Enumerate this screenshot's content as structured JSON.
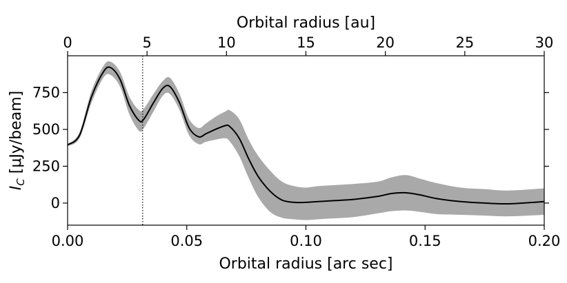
{
  "chart_data": {
    "type": "line",
    "xlabel": "Orbital radius [arc sec]",
    "ylabel": "I_C [μJy/beam]",
    "ylabel_parts": {
      "main": "I",
      "sub": "C",
      "rest": " [μJy/beam]"
    },
    "top_xlabel": "Orbital radius [au]",
    "xlim": [
      0.0,
      0.2
    ],
    "ylim": [
      -150,
      1000
    ],
    "x_ticks": [
      "0.00",
      "0.05",
      "0.10",
      "0.15",
      "0.20"
    ],
    "x_tick_values": [
      0.0,
      0.05,
      0.1,
      0.15,
      0.2
    ],
    "y_ticks": [
      "0",
      "250",
      "500",
      "750"
    ],
    "y_tick_values": [
      0,
      250,
      500,
      750
    ],
    "top_ticks": [
      "0",
      "5",
      "10",
      "15",
      "20",
      "25",
      "30"
    ],
    "top_tick_values": [
      0,
      5,
      10,
      15,
      20,
      25,
      30
    ],
    "top_xlim": [
      0,
      30
    ],
    "vline_x": 0.0315,
    "grid": false,
    "colors": {
      "line": "#000000",
      "band": "#a9a9a9"
    },
    "series": [
      {
        "x": [
          0.0,
          0.005,
          0.01,
          0.015,
          0.018,
          0.022,
          0.026,
          0.03,
          0.032,
          0.036,
          0.04,
          0.043,
          0.047,
          0.051,
          0.055,
          0.058,
          0.062,
          0.066,
          0.068,
          0.072,
          0.076,
          0.08,
          0.085,
          0.09,
          0.095,
          0.1,
          0.105,
          0.11,
          0.12,
          0.13,
          0.136,
          0.142,
          0.148,
          0.155,
          0.165,
          0.175,
          0.185,
          0.2
        ],
        "y": [
          395,
          460,
          720,
          890,
          920,
          840,
          660,
          560,
          570,
          680,
          780,
          790,
          680,
          510,
          450,
          470,
          500,
          525,
          520,
          440,
          300,
          180,
          80,
          20,
          5,
          5,
          10,
          15,
          25,
          45,
          65,
          70,
          55,
          30,
          10,
          0,
          -5,
          10
        ],
        "low": [
          385,
          440,
          680,
          850,
          870,
          790,
          600,
          490,
          510,
          620,
          730,
          740,
          630,
          460,
          400,
          415,
          430,
          440,
          420,
          320,
          170,
          40,
          -60,
          -100,
          -110,
          -115,
          -110,
          -105,
          -95,
          -70,
          -55,
          -50,
          -60,
          -75,
          -80,
          -85,
          -90,
          -80
        ],
        "high": [
          400,
          480,
          760,
          930,
          960,
          890,
          720,
          630,
          640,
          740,
          830,
          850,
          740,
          570,
          510,
          540,
          585,
          620,
          630,
          570,
          430,
          320,
          220,
          145,
          115,
          105,
          115,
          120,
          130,
          145,
          175,
          190,
          165,
          135,
          105,
          95,
          85,
          100
        ]
      }
    ]
  }
}
